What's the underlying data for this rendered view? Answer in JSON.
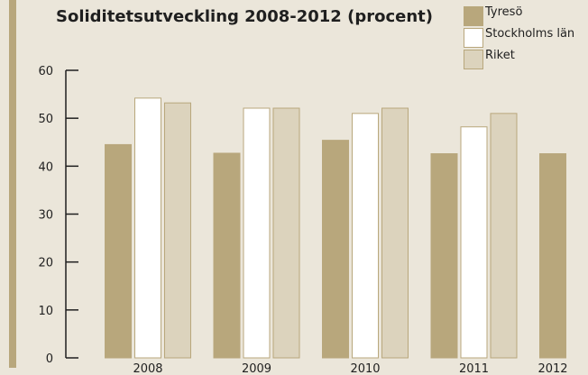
{
  "colors": {
    "background": "#ebe6da",
    "tyreso": "#b8a77c",
    "stockholm": "#ffffff",
    "riket": "#dcd3bd",
    "bar_outline": "#b8a77c",
    "axis": "#1f1f1f",
    "text": "#1f1f1f"
  },
  "chart_data": {
    "type": "bar",
    "title": "Soliditetsutveckling 2008-2012 (procent)",
    "xlabel": "",
    "ylabel": "",
    "categories": [
      "2008",
      "2009",
      "2010",
      "2011",
      "2012"
    ],
    "series": [
      {
        "name": "Tyresö",
        "values": [
          44.5,
          42.7,
          45.4,
          42.6,
          42.6
        ]
      },
      {
        "name": "Stockholms län",
        "values": [
          54.2,
          52.1,
          51.0,
          48.2,
          null
        ]
      },
      {
        "name": "Riket",
        "values": [
          53.2,
          52.1,
          52.1,
          51.0,
          null
        ]
      }
    ],
    "ylim": [
      0,
      60
    ],
    "yticks": [
      0,
      10,
      20,
      30,
      40,
      50,
      60
    ],
    "grid": false,
    "legend": "top-right"
  }
}
